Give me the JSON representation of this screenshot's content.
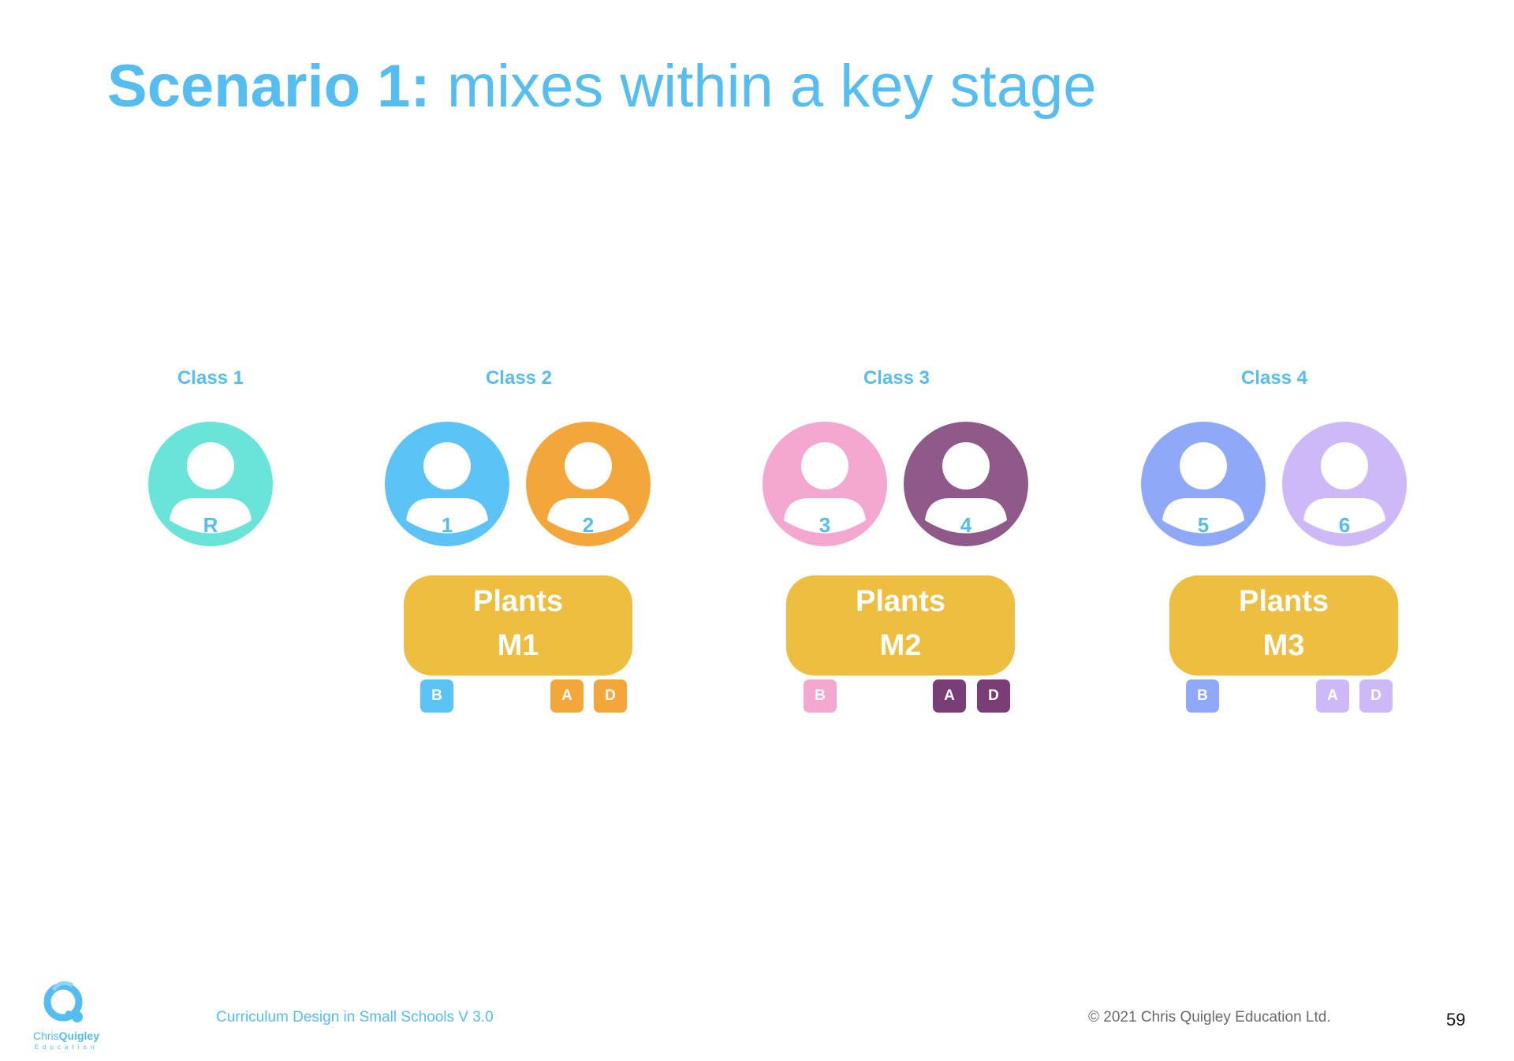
{
  "title": {
    "lead": "Scenario 1:",
    "rest": " mixes within a key stage"
  },
  "colors": {
    "accent": "#55BDF0",
    "topic": "#EEBE40",
    "year_R": "#6AE3D8",
    "year_1": "#5BC3F5",
    "year_2": "#F3A73A",
    "year_3": "#F4A7CF",
    "year_4": "#8F598A",
    "year_5": "#8FA9F8",
    "year_6": "#CDB9F7"
  },
  "classes": [
    {
      "label": "Class 1",
      "years": [
        {
          "label": "R",
          "color": "#6AE3D8"
        }
      ]
    },
    {
      "label": "Class 2",
      "years": [
        {
          "label": "1",
          "color": "#5BC3F5"
        },
        {
          "label": "2",
          "color": "#F3A73A"
        }
      ],
      "topic": {
        "line1": "Plants",
        "line2": "M1"
      },
      "tags": [
        {
          "label": "B",
          "color": "#5BC3F5"
        },
        {
          "label": "A",
          "color": "#F3A73A"
        },
        {
          "label": "D",
          "color": "#F3A73A"
        }
      ]
    },
    {
      "label": "Class 3",
      "years": [
        {
          "label": "3",
          "color": "#F4A7CF"
        },
        {
          "label": "4",
          "color": "#8F598A"
        }
      ],
      "topic": {
        "line1": "Plants",
        "line2": "M2"
      },
      "tags": [
        {
          "label": "B",
          "color": "#F4A7CF"
        },
        {
          "label": "A",
          "color": "#7A3D75"
        },
        {
          "label": "D",
          "color": "#7A3D75"
        }
      ]
    },
    {
      "label": "Class 4",
      "years": [
        {
          "label": "5",
          "color": "#8FA9F8"
        },
        {
          "label": "6",
          "color": "#CDB9F7"
        }
      ],
      "topic": {
        "line1": "Plants",
        "line2": "M3"
      },
      "tags": [
        {
          "label": "B",
          "color": "#8FA9F8"
        },
        {
          "label": "A",
          "color": "#CDB9F7"
        },
        {
          "label": "D",
          "color": "#CDB9F7"
        }
      ]
    }
  ],
  "footer": {
    "doc_title": "Curriculum Design in Small Schools V 3.0",
    "copyright": "© 2021 Chris Quigley Education Ltd.",
    "page_number": "59",
    "logo": {
      "first": "Chris",
      "second": "Quigley",
      "sub": "Education"
    }
  }
}
